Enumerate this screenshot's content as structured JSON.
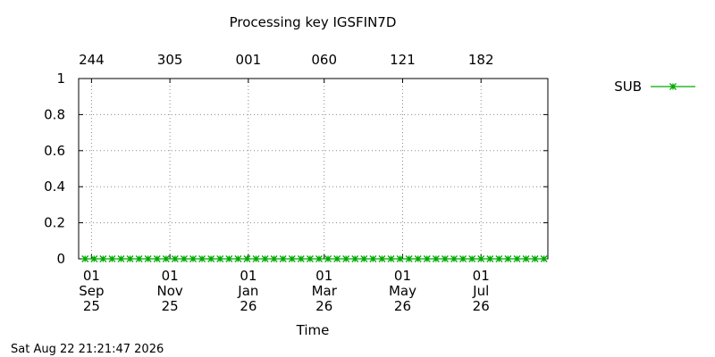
{
  "chart_data": {
    "type": "line",
    "title": "Processing key IGSFIN7D",
    "xlabel": "Time",
    "timestamp": "Sat Aug 22 21:21:47 2026",
    "xlim": [
      "2025-08-22",
      "2026-08-22"
    ],
    "xticks": [
      {
        "value": "2025-09-01",
        "label": [
          "01",
          "Sep",
          "25"
        ]
      },
      {
        "value": "2025-11-01",
        "label": [
          "01",
          "Nov",
          "25"
        ]
      },
      {
        "value": "2026-01-01",
        "label": [
          "01",
          "Jan",
          "26"
        ]
      },
      {
        "value": "2026-03-01",
        "label": [
          "01",
          "Mar",
          "26"
        ]
      },
      {
        "value": "2026-05-01",
        "label": [
          "01",
          "May",
          "26"
        ]
      },
      {
        "value": "2026-07-01",
        "label": [
          "01",
          "Jul",
          "26"
        ]
      }
    ],
    "x2ticks": [
      {
        "value": "2025-09-01",
        "label": "244"
      },
      {
        "value": "2025-11-01",
        "label": "305"
      },
      {
        "value": "2026-01-01",
        "label": "001"
      },
      {
        "value": "2026-03-01",
        "label": "060"
      },
      {
        "value": "2026-05-01",
        "label": "121"
      },
      {
        "value": "2026-07-01",
        "label": "182"
      }
    ],
    "ylim": [
      0,
      1
    ],
    "yticks": [
      0,
      0.2,
      0.4,
      0.6,
      0.8,
      1
    ],
    "grid": true,
    "legend": "outside-right",
    "x": [
      "2025-08-27",
      "2025-09-03",
      "2025-09-10",
      "2025-09-17",
      "2025-09-24",
      "2025-10-01",
      "2025-10-08",
      "2025-10-15",
      "2025-10-22",
      "2025-10-29",
      "2025-11-05",
      "2025-11-12",
      "2025-11-19",
      "2025-11-26",
      "2025-12-03",
      "2025-12-10",
      "2025-12-17",
      "2025-12-24",
      "2025-12-31",
      "2026-01-07",
      "2026-01-14",
      "2026-01-21",
      "2026-01-28",
      "2026-02-04",
      "2026-02-11",
      "2026-02-18",
      "2026-02-25",
      "2026-03-04",
      "2026-03-11",
      "2026-03-18",
      "2026-03-25",
      "2026-04-01",
      "2026-04-08",
      "2026-04-15",
      "2026-04-22",
      "2026-04-29",
      "2026-05-06",
      "2026-05-13",
      "2026-05-20",
      "2026-05-27",
      "2026-06-03",
      "2026-06-10",
      "2026-06-17",
      "2026-06-24",
      "2026-07-01",
      "2026-07-08",
      "2026-07-15",
      "2026-07-22",
      "2026-07-29",
      "2026-08-05",
      "2026-08-12",
      "2026-08-19"
    ],
    "series": [
      {
        "name": "SUB",
        "color": "#00aa00",
        "values": [
          0,
          0,
          0,
          0,
          0,
          0,
          0,
          0,
          0,
          0,
          0,
          0,
          0,
          0,
          0,
          0,
          0,
          0,
          0,
          0,
          0,
          0,
          0,
          0,
          0,
          0,
          0,
          0,
          0,
          0,
          0,
          0,
          0,
          0,
          0,
          0,
          0,
          0,
          0,
          0,
          0,
          0,
          0,
          0,
          0,
          0,
          0,
          0,
          0,
          0,
          0,
          0
        ]
      }
    ]
  }
}
